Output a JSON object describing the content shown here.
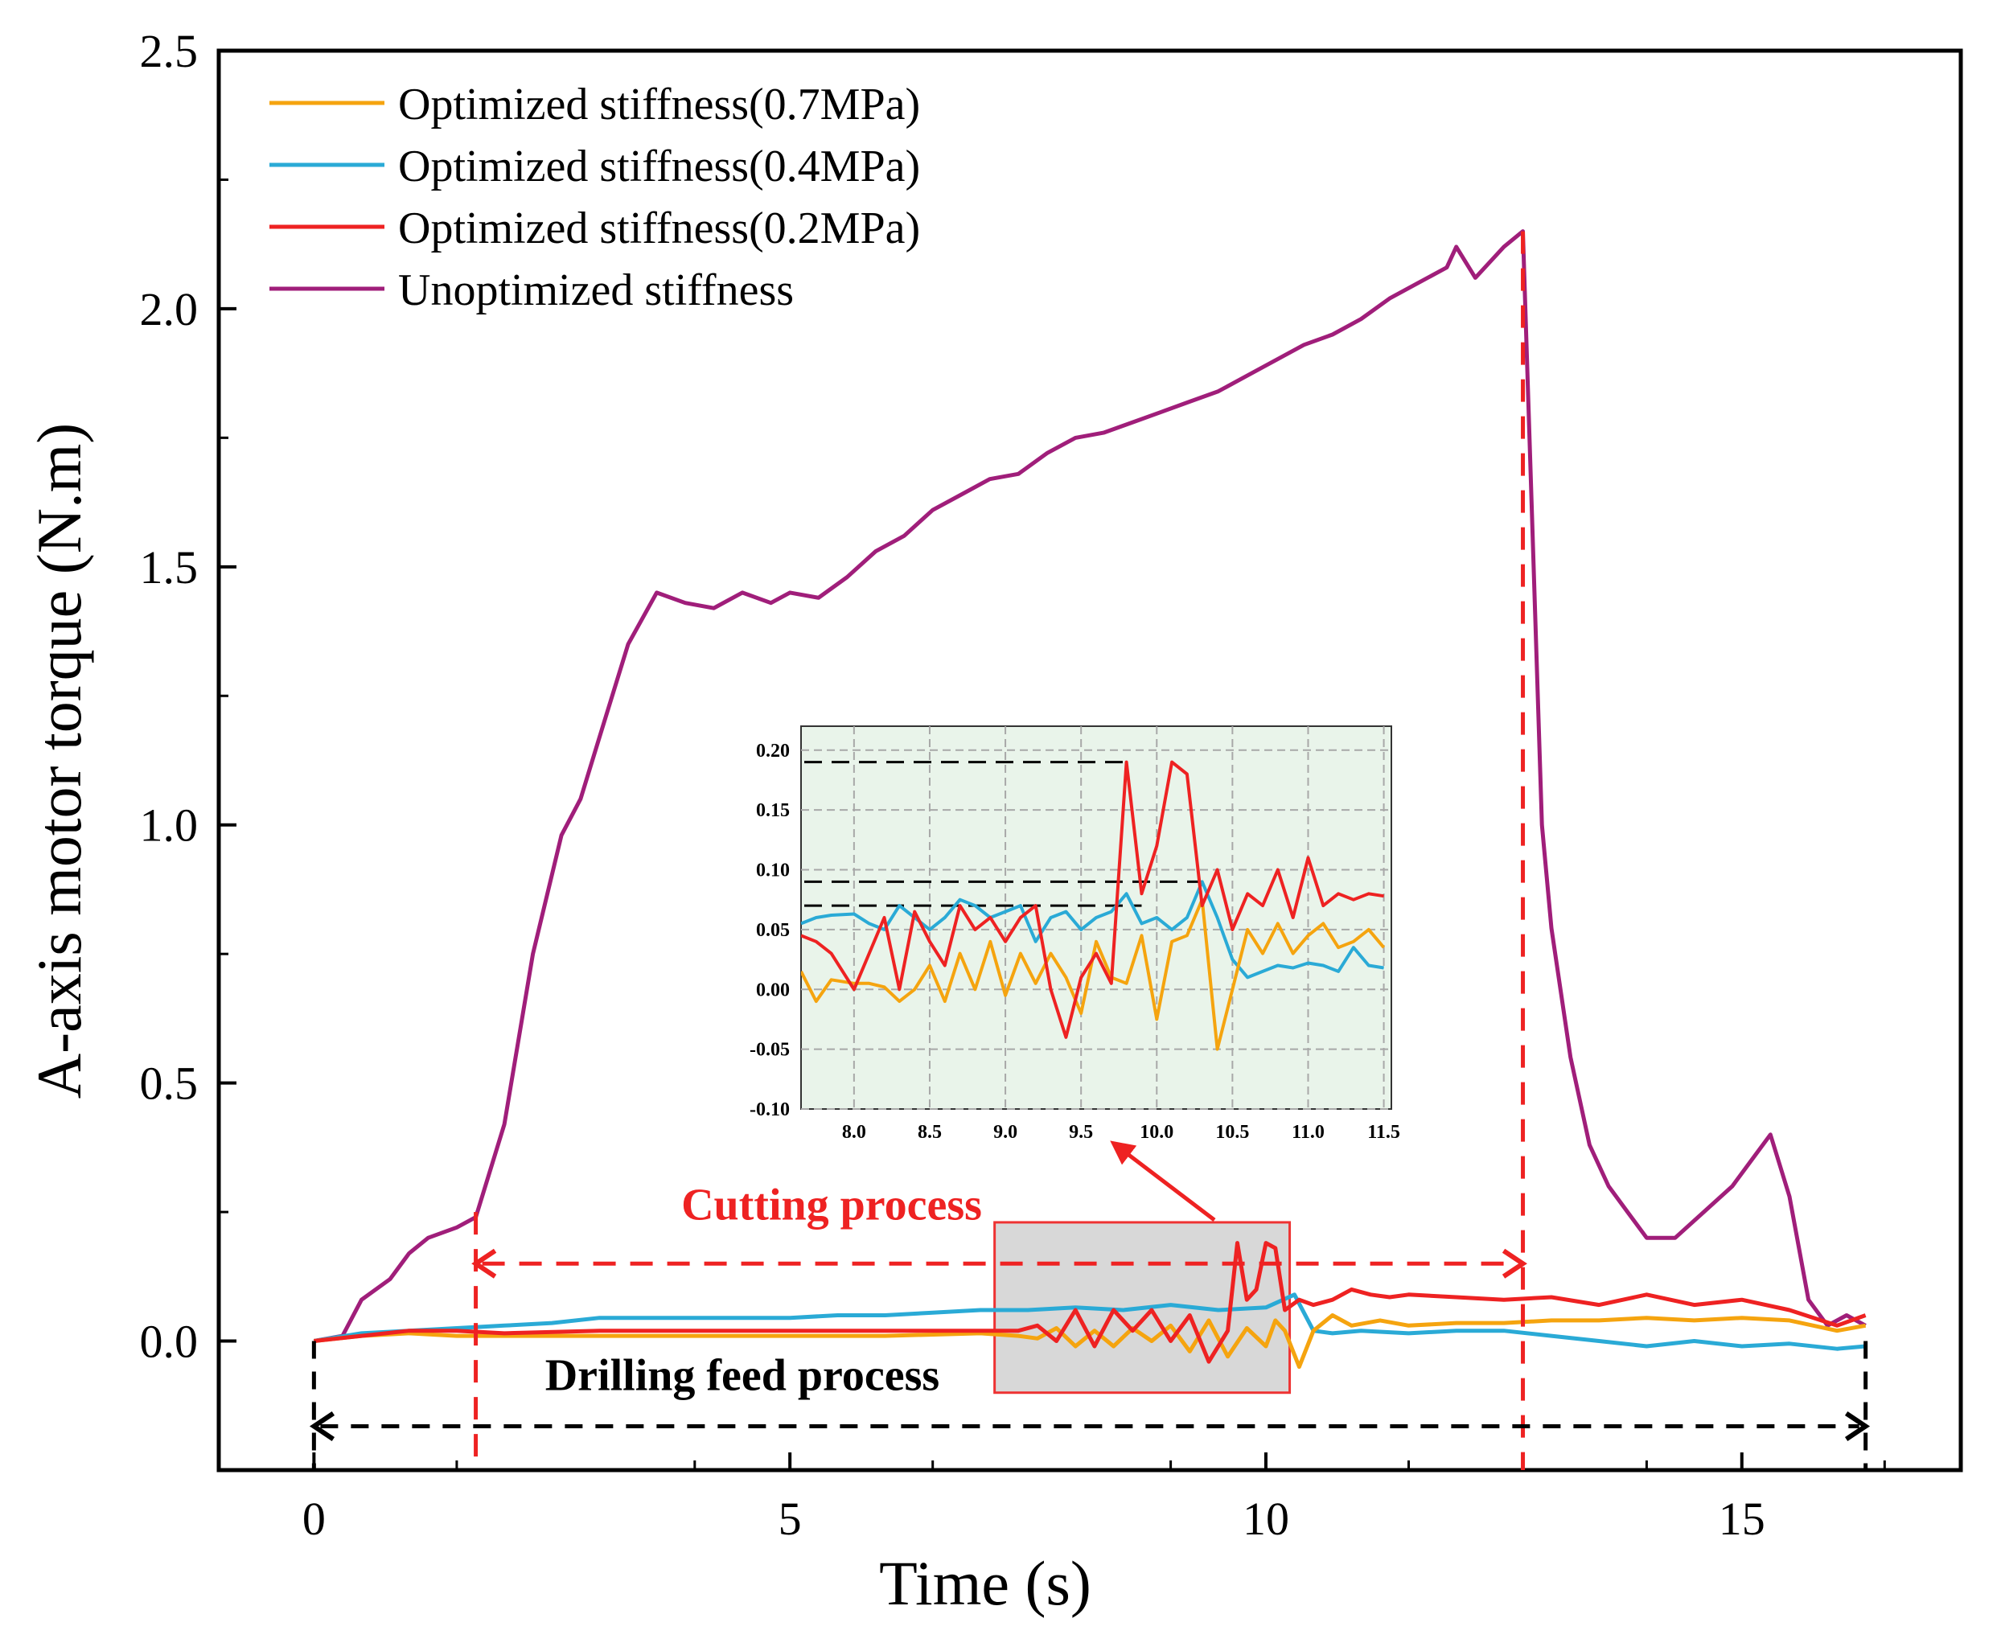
{
  "chart_data": [
    {
      "type": "line",
      "title": "",
      "xlabel": "Time (s)",
      "ylabel": "A-axis motor torque (N.m)",
      "xlim": [
        -1,
        17.3
      ],
      "ylim": [
        -0.25,
        2.5
      ],
      "xticks": [
        0,
        5,
        10,
        15
      ],
      "xtick_labels": [
        "0",
        "5",
        "10",
        "15"
      ],
      "yticks": [
        0.0,
        0.5,
        1.0,
        1.5,
        2.0,
        2.5
      ],
      "ytick_labels": [
        "0.0",
        "0.5",
        "1.0",
        "1.5",
        "2.0",
        "2.5"
      ],
      "grid": false,
      "legend_position": "top-left",
      "series": [
        {
          "name": "Optimized stiffness(0.7MPa)",
          "color": "#f5a40f",
          "x": [
            0,
            0.5,
            1.0,
            1.5,
            2.0,
            3.0,
            4.0,
            5.0,
            6.0,
            7.0,
            7.4,
            7.6,
            7.8,
            8.0,
            8.2,
            8.4,
            8.6,
            8.8,
            9.0,
            9.2,
            9.4,
            9.6,
            9.8,
            10.0,
            10.1,
            10.2,
            10.35,
            10.5,
            10.7,
            10.9,
            11.2,
            11.5,
            12.0,
            12.5,
            13.0,
            13.5,
            14.0,
            14.5,
            15.0,
            15.5,
            16.0,
            16.3
          ],
          "y": [
            0.0,
            0.01,
            0.015,
            0.01,
            0.01,
            0.01,
            0.01,
            0.01,
            0.01,
            0.015,
            0.01,
            0.005,
            0.025,
            -0.01,
            0.02,
            -0.01,
            0.025,
            0.0,
            0.03,
            -0.02,
            0.04,
            -0.03,
            0.025,
            -0.01,
            0.04,
            0.02,
            -0.05,
            0.02,
            0.05,
            0.03,
            0.04,
            0.03,
            0.035,
            0.035,
            0.04,
            0.04,
            0.045,
            0.04,
            0.045,
            0.04,
            0.02,
            0.03
          ]
        },
        {
          "name": "Optimized stiffness(0.4MPa)",
          "color": "#2aaad6",
          "x": [
            0,
            0.5,
            1.0,
            1.5,
            2.0,
            2.5,
            3.0,
            3.5,
            4.0,
            4.5,
            5.0,
            5.5,
            6.0,
            6.5,
            7.0,
            7.5,
            8.0,
            8.5,
            9.0,
            9.5,
            10.0,
            10.3,
            10.5,
            10.7,
            11.0,
            11.5,
            12.0,
            12.5,
            13.0,
            13.5,
            14.0,
            14.5,
            15.0,
            15.5,
            16.0,
            16.3
          ],
          "y": [
            0.0,
            0.015,
            0.02,
            0.025,
            0.03,
            0.035,
            0.045,
            0.045,
            0.045,
            0.045,
            0.045,
            0.05,
            0.05,
            0.055,
            0.06,
            0.06,
            0.065,
            0.06,
            0.07,
            0.06,
            0.065,
            0.09,
            0.02,
            0.015,
            0.02,
            0.015,
            0.02,
            0.02,
            0.01,
            0.0,
            -0.01,
            0.0,
            -0.01,
            -0.005,
            -0.015,
            -0.01
          ]
        },
        {
          "name": "Optimized stiffness(0.2MPa)",
          "color": "#ee2222",
          "x": [
            0,
            0.5,
            1.0,
            1.5,
            2.0,
            3.0,
            4.0,
            5.0,
            6.0,
            7.0,
            7.4,
            7.6,
            7.8,
            8.0,
            8.2,
            8.4,
            8.6,
            8.8,
            9.0,
            9.2,
            9.4,
            9.6,
            9.7,
            9.8,
            9.9,
            10.0,
            10.1,
            10.2,
            10.35,
            10.5,
            10.7,
            10.9,
            11.1,
            11.3,
            11.5,
            12.0,
            12.5,
            13.0,
            13.5,
            14.0,
            14.5,
            15.0,
            15.5,
            16.0,
            16.3
          ],
          "y": [
            0.0,
            0.01,
            0.02,
            0.02,
            0.015,
            0.02,
            0.02,
            0.02,
            0.02,
            0.02,
            0.02,
            0.03,
            0.0,
            0.06,
            -0.01,
            0.06,
            0.02,
            0.06,
            0.0,
            0.05,
            -0.04,
            0.02,
            0.19,
            0.08,
            0.1,
            0.19,
            0.18,
            0.06,
            0.08,
            0.07,
            0.08,
            0.1,
            0.09,
            0.085,
            0.09,
            0.085,
            0.08,
            0.085,
            0.07,
            0.09,
            0.07,
            0.08,
            0.06,
            0.03,
            0.05
          ]
        },
        {
          "name": "Unoptimized stiffness",
          "color": "#a01e7a",
          "x": [
            0,
            0.3,
            0.5,
            0.8,
            1.0,
            1.2,
            1.5,
            1.7,
            2.0,
            2.3,
            2.6,
            2.8,
            3.0,
            3.3,
            3.6,
            3.9,
            4.2,
            4.5,
            4.8,
            5.0,
            5.3,
            5.6,
            5.9,
            6.2,
            6.5,
            6.8,
            7.1,
            7.4,
            7.7,
            8.0,
            8.3,
            8.6,
            8.9,
            9.2,
            9.5,
            9.8,
            10.1,
            10.4,
            10.7,
            11.0,
            11.3,
            11.6,
            11.9,
            12.0,
            12.2,
            12.5,
            12.7,
            12.9,
            13.0,
            13.2,
            13.4,
            13.6,
            13.8,
            14.0,
            14.3,
            14.6,
            14.9,
            15.1,
            15.3,
            15.5,
            15.7,
            15.9,
            16.1,
            16.3
          ],
          "y": [
            0.0,
            0.01,
            0.08,
            0.12,
            0.17,
            0.2,
            0.22,
            0.24,
            0.42,
            0.75,
            0.98,
            1.05,
            1.17,
            1.35,
            1.45,
            1.43,
            1.42,
            1.45,
            1.43,
            1.45,
            1.44,
            1.48,
            1.53,
            1.56,
            1.61,
            1.64,
            1.67,
            1.68,
            1.72,
            1.75,
            1.76,
            1.78,
            1.8,
            1.82,
            1.84,
            1.87,
            1.9,
            1.93,
            1.95,
            1.98,
            2.02,
            2.05,
            2.08,
            2.12,
            2.06,
            2.12,
            2.15,
            1.0,
            0.8,
            0.55,
            0.38,
            0.3,
            0.25,
            0.2,
            0.2,
            0.25,
            0.3,
            0.35,
            0.4,
            0.28,
            0.08,
            0.03,
            0.05,
            0.03
          ]
        }
      ],
      "annotations": {
        "cutting_label": "Cutting process",
        "cutting_range": [
          1.7,
          12.7
        ],
        "drilling_label": "Drilling feed process",
        "drilling_range": [
          0,
          16.3
        ],
        "cutting_color": "#ee2222",
        "drilling_color": "#000000"
      },
      "highlight_region": {
        "x": [
          7.15,
          10.25
        ],
        "y": [
          -0.1,
          0.23
        ]
      }
    },
    {
      "type": "line",
      "title": "",
      "xlabel": "",
      "ylabel": "",
      "xlim": [
        7.65,
        11.55
      ],
      "ylim": [
        -0.1,
        0.22
      ],
      "xticks": [
        8.0,
        8.5,
        9.0,
        9.5,
        10.0,
        10.5,
        11.0,
        11.5
      ],
      "xtick_labels": [
        "8.0",
        "8.5",
        "9.0",
        "9.5",
        "10.0",
        "10.5",
        "11.0",
        "11.5"
      ],
      "yticks": [
        -0.1,
        -0.05,
        0.0,
        0.05,
        0.1,
        0.15,
        0.2
      ],
      "ytick_labels": [
        "-0.10",
        "-0.05",
        "0.00",
        "0.05",
        "0.10",
        "0.15",
        "0.20"
      ],
      "grid": true,
      "background": "#e9f4ea",
      "series": [
        {
          "name": "Optimized stiffness(0.7MPa)",
          "color": "#f5a40f",
          "x": [
            7.65,
            7.75,
            7.85,
            8.0,
            8.1,
            8.2,
            8.3,
            8.4,
            8.5,
            8.6,
            8.7,
            8.8,
            8.9,
            9.0,
            9.1,
            9.2,
            9.3,
            9.4,
            9.5,
            9.6,
            9.7,
            9.8,
            9.9,
            10.0,
            10.1,
            10.2,
            10.3,
            10.4,
            10.5,
            10.6,
            10.7,
            10.8,
            10.9,
            11.0,
            11.1,
            11.2,
            11.3,
            11.4,
            11.5
          ],
          "y": [
            0.015,
            -0.01,
            0.008,
            0.005,
            0.005,
            0.002,
            -0.01,
            0.0,
            0.02,
            -0.01,
            0.03,
            0.0,
            0.04,
            -0.005,
            0.03,
            0.005,
            0.03,
            0.01,
            -0.02,
            0.04,
            0.01,
            0.005,
            0.045,
            -0.025,
            0.04,
            0.045,
            0.075,
            -0.05,
            0.0,
            0.05,
            0.03,
            0.055,
            0.03,
            0.045,
            0.055,
            0.035,
            0.04,
            0.05,
            0.035
          ]
        },
        {
          "name": "Optimized stiffness(0.4MPa)",
          "color": "#2aaad6",
          "x": [
            7.65,
            7.75,
            7.85,
            8.0,
            8.1,
            8.2,
            8.3,
            8.4,
            8.5,
            8.6,
            8.7,
            8.8,
            8.9,
            9.0,
            9.1,
            9.2,
            9.3,
            9.4,
            9.5,
            9.6,
            9.7,
            9.8,
            9.9,
            10.0,
            10.1,
            10.2,
            10.3,
            10.4,
            10.5,
            10.6,
            10.7,
            10.8,
            10.9,
            11.0,
            11.1,
            11.2,
            11.3,
            11.4,
            11.5
          ],
          "y": [
            0.055,
            0.06,
            0.062,
            0.063,
            0.055,
            0.05,
            0.07,
            0.06,
            0.05,
            0.06,
            0.075,
            0.07,
            0.06,
            0.065,
            0.07,
            0.04,
            0.06,
            0.065,
            0.05,
            0.06,
            0.065,
            0.08,
            0.055,
            0.06,
            0.05,
            0.06,
            0.09,
            0.06,
            0.025,
            0.01,
            0.015,
            0.02,
            0.018,
            0.022,
            0.02,
            0.015,
            0.035,
            0.02,
            0.018
          ]
        },
        {
          "name": "Optimized stiffness(0.2MPa)",
          "color": "#ee2222",
          "x": [
            7.65,
            7.75,
            7.85,
            8.0,
            8.1,
            8.2,
            8.3,
            8.4,
            8.5,
            8.6,
            8.7,
            8.8,
            8.9,
            9.0,
            9.1,
            9.2,
            9.3,
            9.4,
            9.5,
            9.6,
            9.7,
            9.8,
            9.9,
            10.0,
            10.1,
            10.2,
            10.3,
            10.4,
            10.5,
            10.6,
            10.7,
            10.8,
            10.9,
            11.0,
            11.1,
            11.2,
            11.3,
            11.4,
            11.5
          ],
          "y": [
            0.045,
            0.04,
            0.03,
            0.0,
            0.03,
            0.06,
            0.0,
            0.065,
            0.04,
            0.02,
            0.07,
            0.05,
            0.06,
            0.04,
            0.06,
            0.07,
            0.0,
            -0.04,
            0.01,
            0.03,
            0.005,
            0.19,
            0.08,
            0.12,
            0.19,
            0.18,
            0.07,
            0.1,
            0.05,
            0.08,
            0.07,
            0.1,
            0.06,
            0.11,
            0.07,
            0.08,
            0.075,
            0.08,
            0.078
          ]
        }
      ],
      "reference_lines": [
        0.19,
        0.09,
        0.07
      ]
    }
  ]
}
